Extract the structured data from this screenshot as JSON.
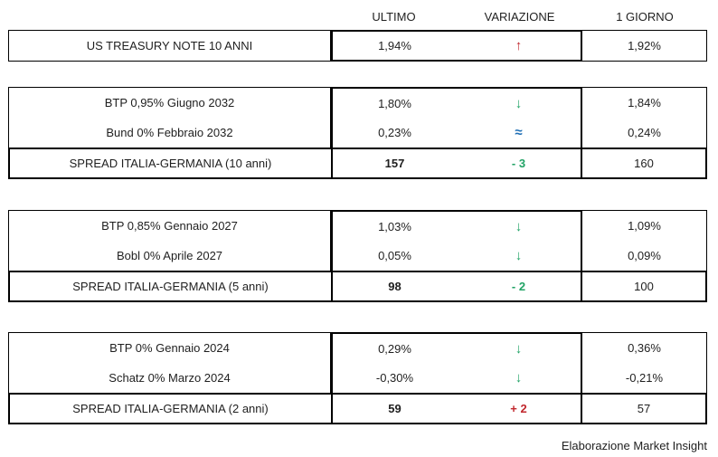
{
  "header": {
    "ultimo": "ULTIMO",
    "variazione": "VARIAZIONE",
    "giorno": "1 GIORNO"
  },
  "colors": {
    "up_red": "#c1272d",
    "down_green": "#21a366",
    "flat_blue": "#1f6fb5",
    "border": "#000000"
  },
  "tables": [
    {
      "name": "us-treasury",
      "rows": [
        {
          "label": "US TREASURY NOTE 10 ANNI",
          "ultimo": "1,94%",
          "variazione": {
            "symbol": "↑",
            "color": "#c1272d"
          },
          "giorno": "1,92%"
        }
      ]
    },
    {
      "name": "italy-germany-10y",
      "rows": [
        {
          "label": "BTP 0,95% Giugno 2032",
          "ultimo": "1,80%",
          "variazione": {
            "symbol": "↓",
            "color": "#21a366"
          },
          "giorno": "1,84%"
        },
        {
          "label": "Bund 0% Febbraio 2032",
          "ultimo": "0,23%",
          "variazione": {
            "symbol": "≈",
            "color": "#1f6fb5"
          },
          "giorno": "0,24%"
        }
      ],
      "spread": {
        "label": "SPREAD ITALIA-GERMANIA (10 anni)",
        "ultimo": "157",
        "variazione": {
          "symbol": "- 3",
          "color": "#21a366"
        },
        "giorno": "160"
      }
    },
    {
      "name": "italy-germany-5y",
      "rows": [
        {
          "label": "BTP 0,85% Gennaio 2027",
          "ultimo": "1,03%",
          "variazione": {
            "symbol": "↓",
            "color": "#21a366"
          },
          "giorno": "1,09%"
        },
        {
          "label": "Bobl 0% Aprile 2027",
          "ultimo": "0,05%",
          "variazione": {
            "symbol": "↓",
            "color": "#21a366"
          },
          "giorno": "0,09%"
        }
      ],
      "spread": {
        "label": "SPREAD ITALIA-GERMANIA (5 anni)",
        "ultimo": "98",
        "variazione": {
          "symbol": "- 2",
          "color": "#21a366"
        },
        "giorno": "100"
      }
    },
    {
      "name": "italy-germany-2y",
      "rows": [
        {
          "label": "BTP 0% Gennaio 2024",
          "ultimo": "0,29%",
          "variazione": {
            "symbol": "↓",
            "color": "#21a366"
          },
          "giorno": "0,36%"
        },
        {
          "label": "Schatz 0% Marzo 2024",
          "ultimo": "-0,30%",
          "variazione": {
            "symbol": "↓",
            "color": "#21a366"
          },
          "giorno": "-0,21%"
        }
      ],
      "spread": {
        "label": "SPREAD ITALIA-GERMANIA (2 anni)",
        "ultimo": "59",
        "variazione": {
          "symbol": "+ 2",
          "color": "#c1272d"
        },
        "giorno": "57"
      }
    }
  ],
  "footer": {
    "credit": "Elaborazione Market Insight"
  }
}
